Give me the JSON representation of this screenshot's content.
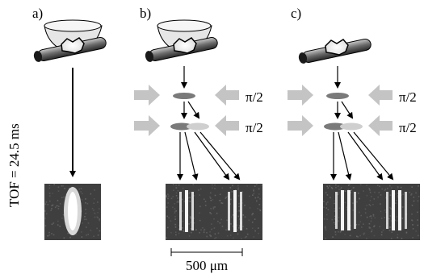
{
  "panels": [
    {
      "label": "a)"
    },
    {
      "label": "b)",
      "pulse_labels": [
        "π/2",
        "π/2"
      ]
    },
    {
      "label": "c)",
      "pulse_labels": [
        "π/2",
        "π/2"
      ]
    }
  ],
  "tof_label": "TOF = 24.5 ms",
  "scale_bar_label": "500 μm",
  "colors": {
    "arrow_gray": "#c4c4c4",
    "cloud_dark": "#7a7a7a",
    "cloud_light": "#cfcfcf",
    "image_bg": "#3f3f3f",
    "image_noise": "#6a6a6a",
    "fringe": "#f4f4f4"
  }
}
